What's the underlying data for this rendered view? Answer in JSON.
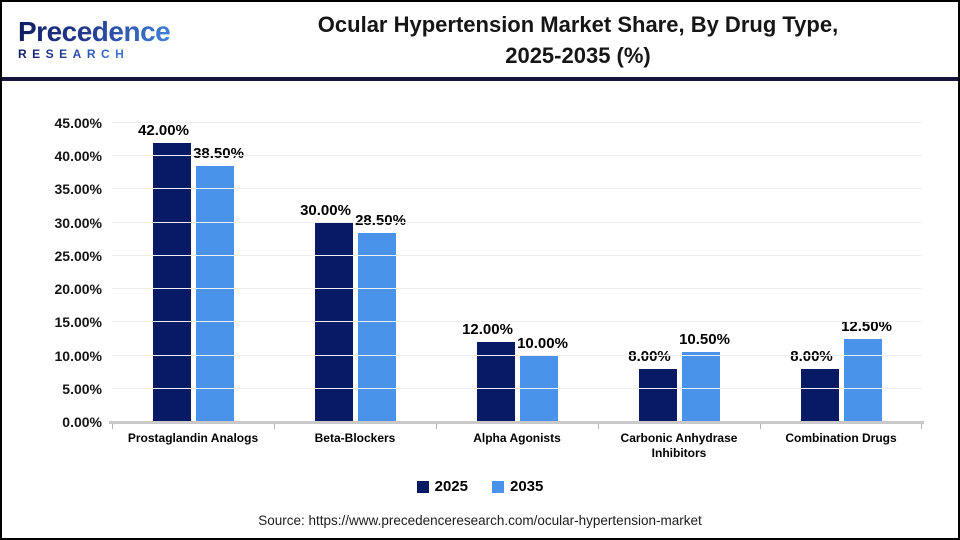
{
  "header": {
    "logo": {
      "name": "Precedence",
      "subname": "RESEARCH"
    },
    "title_line1": "Ocular Hypertension Market Share, By Drug Type,",
    "title_line2": "2025-2035 (%)"
  },
  "chart_data": {
    "type": "bar",
    "title": "Ocular Hypertension Market Share, By Drug Type, 2025-2035 (%)",
    "categories": [
      "Prostaglandin Analogs",
      "Beta-Blockers",
      "Alpha Agonists",
      "Carbonic Anhydrase Inhibitors",
      "Combination Drugs"
    ],
    "series": [
      {
        "name": "2025",
        "color": "#081A66",
        "values": [
          42.0,
          30.0,
          12.0,
          8.0,
          8.0
        ],
        "value_labels": [
          "42.00%",
          "30.00%",
          "12.00%",
          "8.00%",
          "8.00%"
        ]
      },
      {
        "name": "2035",
        "color": "#4A93EA",
        "values": [
          38.5,
          28.5,
          10.0,
          10.5,
          12.5
        ],
        "value_labels": [
          "38.50%",
          "28.50%",
          "10.00%",
          "10.50%",
          "12.50%"
        ]
      }
    ],
    "ylim": [
      0,
      45
    ],
    "ytick_step": 5,
    "ytick_labels": [
      "0.00%",
      "5.00%",
      "10.00%",
      "15.00%",
      "20.00%",
      "25.00%",
      "30.00%",
      "35.00%",
      "40.00%",
      "45.00%"
    ],
    "grid": true,
    "legend_position": "bottom",
    "xlabel": "",
    "ylabel": ""
  },
  "footer": {
    "source_text": "Source: https://www.precedenceresearch.com/ocular-hypertension-market"
  }
}
